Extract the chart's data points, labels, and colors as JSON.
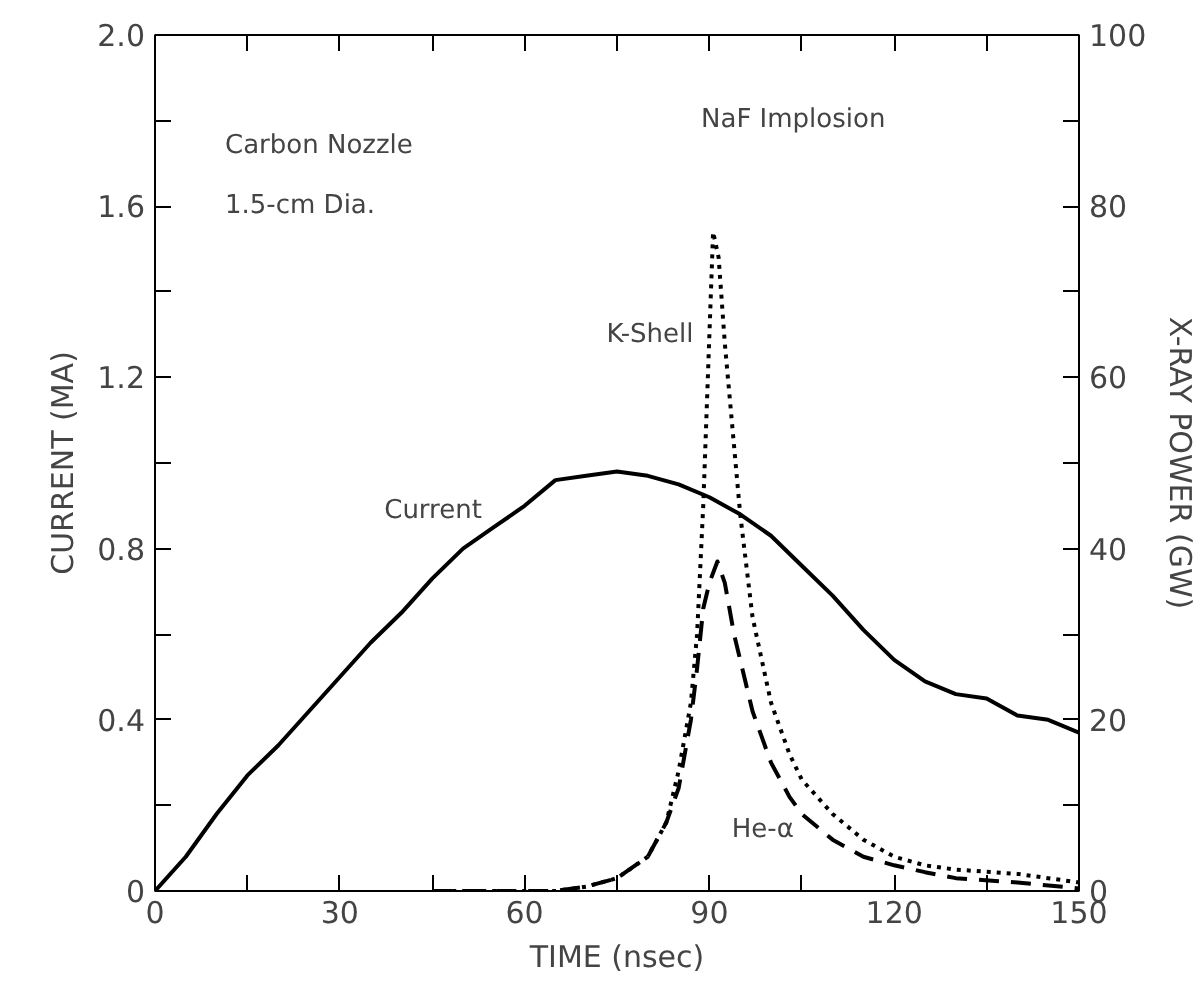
{
  "chart_data": {
    "type": "line",
    "xlabel": "TIME (nsec)",
    "ylabel": "CURRENT (MA)",
    "y2label": "X-RAY POWER (GW)",
    "xlim": [
      0,
      150
    ],
    "ylim": [
      0,
      2.0
    ],
    "y2lim": [
      0,
      100
    ],
    "xticks": [
      0,
      {
        "value": 15,
        "label": null
      },
      30,
      {
        "value": 45,
        "label": null
      },
      60,
      {
        "value": 75,
        "label": null
      },
      90,
      {
        "value": 105,
        "label": null
      },
      120,
      {
        "value": 135,
        "label": null
      },
      150
    ],
    "yticks": [
      0,
      {
        "value": 0.2,
        "label": null
      },
      0.4,
      {
        "value": 0.6,
        "label": null
      },
      0.8,
      {
        "value": 1.0,
        "label": null
      },
      {
        "value": 1.2,
        "label": "1.2"
      },
      {
        "value": 1.4,
        "label": null
      },
      {
        "value": 1.6,
        "label": "1.6"
      },
      {
        "value": 1.8,
        "label": null
      },
      {
        "value": 2.0,
        "label": "2.0"
      }
    ],
    "y2ticks": [
      0,
      {
        "value": 10,
        "label": null
      },
      20,
      {
        "value": 30,
        "label": null
      },
      40,
      {
        "value": 50,
        "label": null
      },
      60,
      {
        "value": 70,
        "label": null
      },
      80,
      {
        "value": 90,
        "label": null
      },
      100
    ],
    "grid": false,
    "legend": false,
    "marker": "none",
    "annotations": [
      "Carbon Nozzle",
      "1.5-cm Dia.",
      "NaF Implosion"
    ],
    "series": [
      {
        "name": "Current",
        "color": "#000000",
        "line_style": "solid",
        "x": [
          0,
          5,
          10,
          15,
          20,
          25,
          30,
          35,
          40,
          45,
          50,
          55,
          60,
          65,
          70,
          75,
          80,
          85,
          90,
          95,
          100,
          105,
          110,
          115,
          120,
          125,
          130,
          135,
          140,
          145,
          150
        ],
        "values": [
          0,
          0.08,
          0.18,
          0.27,
          0.34,
          0.42,
          0.5,
          0.58,
          0.65,
          0.73,
          0.8,
          0.85,
          0.9,
          0.96,
          0.97,
          0.98,
          0.97,
          0.95,
          0.92,
          0.88,
          0.83,
          0.76,
          0.69,
          0.61,
          0.54,
          0.49,
          0.46,
          0.45,
          0.41,
          0.4,
          0.37
        ]
      },
      {
        "name": "K-Shell",
        "color": "#000000",
        "line_style": "dotted",
        "axis": "y2",
        "x": [
          45,
          55,
          65,
          70,
          75,
          80,
          83,
          85,
          87,
          88,
          89,
          90,
          90.6,
          91.5,
          92.5,
          94,
          95,
          97,
          100,
          103,
          105,
          110,
          115,
          120,
          125,
          130,
          140,
          150
        ],
        "values": [
          0,
          0,
          0,
          0.5,
          1.5,
          4,
          8,
          14,
          22,
          30,
          45,
          65,
          77,
          74,
          64,
          52,
          44,
          32,
          22,
          16,
          13,
          9,
          6,
          4,
          3,
          2.5,
          2,
          1
        ]
      },
      {
        "name": "He-α",
        "color": "#000000",
        "line_style": "dashed",
        "axis": "y2",
        "x": [
          45,
          55,
          65,
          70,
          75,
          80,
          83,
          85,
          87,
          88,
          89,
          90,
          91.3,
          92.5,
          94,
          95,
          97,
          100,
          103,
          105,
          110,
          115,
          120,
          125,
          130,
          140,
          150
        ],
        "values": [
          0,
          0,
          0,
          0.5,
          1.5,
          4,
          8,
          12,
          20,
          26,
          33,
          36,
          38.5,
          36,
          30,
          27,
          21,
          15,
          11,
          9,
          6,
          4,
          3,
          2.2,
          1.5,
          1,
          0.3
        ]
      }
    ]
  }
}
